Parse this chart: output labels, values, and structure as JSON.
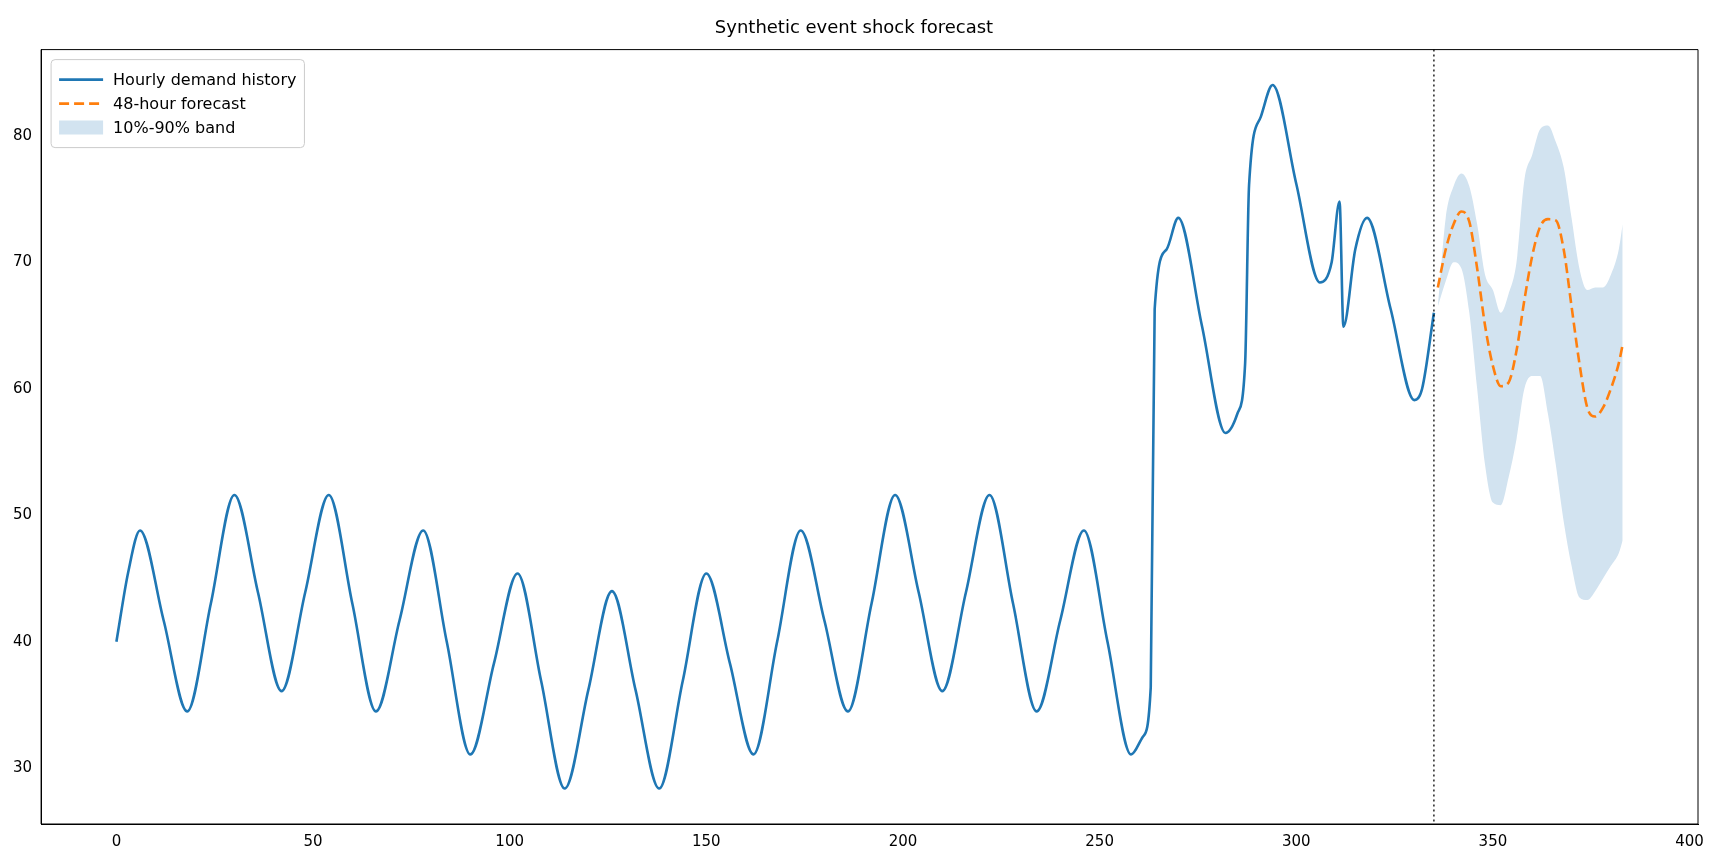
{
  "chart_data": {
    "type": "line",
    "title": "Synthetic event shock forecast",
    "xlim": [
      -19.15,
      402.15
    ],
    "ylim": [
      25.6,
      86.8
    ],
    "xticks": [
      0,
      50,
      100,
      150,
      200,
      250,
      300,
      350,
      400
    ],
    "yticks": [
      30,
      40,
      50,
      60,
      70,
      80
    ],
    "grid": false,
    "legend": "top left",
    "marker": "none",
    "series": [
      {
        "name": "Hourly demand history",
        "color": "#1f77b4",
        "line_style": "solid",
        "x": [
          0,
          3,
          6,
          12,
          18,
          24,
          30,
          36,
          42,
          48,
          54,
          60,
          66,
          72,
          78,
          84,
          90,
          96,
          102,
          108,
          114,
          120,
          126,
          132,
          138,
          144,
          150,
          156,
          162,
          168,
          174,
          180,
          186,
          192,
          198,
          204,
          210,
          216,
          222,
          228,
          234,
          240,
          246,
          252,
          258,
          261,
          263,
          264,
          267,
          270,
          276,
          282,
          285,
          287,
          288,
          291,
          294,
          300,
          306,
          309,
          311,
          312,
          315,
          318,
          324,
          330,
          332,
          335
        ],
        "values": [
          40,
          45.5,
          48.8,
          41.7,
          34.5,
          43,
          51.6,
          43.9,
          36.1,
          43.9,
          51.6,
          43,
          34.5,
          41.7,
          48.8,
          40,
          31.1,
          38.3,
          45.4,
          36.9,
          28.4,
          36.2,
          44,
          36.2,
          28.4,
          36.9,
          45.4,
          38.3,
          31.1,
          40,
          48.8,
          41.7,
          34.5,
          43,
          51.6,
          43.9,
          36.1,
          43.9,
          51.6,
          43,
          34.5,
          41.7,
          48.8,
          40,
          31.1,
          32.5,
          36.4,
          66.3,
          71,
          73.5,
          65,
          56.5,
          58,
          62,
          76.1,
          81.5,
          84,
          76.2,
          68.4,
          70,
          74.8,
          64.9,
          71,
          73.5,
          66.3,
          59.1,
          60,
          66
        ]
      },
      {
        "name": "48-hour forecast",
        "color": "#ff7f0e",
        "line_style": "dashed",
        "x": [
          336,
          338,
          340,
          342,
          344,
          346,
          348,
          350,
          352,
          354,
          356,
          358,
          360,
          362,
          364,
          366,
          368,
          370,
          372,
          374,
          376,
          378,
          380,
          382,
          383
        ],
        "values": [
          68,
          71,
          73,
          74,
          73.2,
          69.5,
          65,
          61.8,
          60.2,
          60.5,
          63,
          67,
          70.5,
          72.8,
          73.4,
          73.3,
          71,
          66.5,
          62,
          58.5,
          57.8,
          58.5,
          60,
          62,
          63.5
        ]
      },
      {
        "name": "10%-90% band",
        "type": "area",
        "color": "#d2e3f0",
        "x": [
          336,
          338,
          340,
          342,
          344,
          346,
          348,
          350,
          352,
          354,
          356,
          358,
          360,
          362,
          364,
          366,
          368,
          370,
          372,
          374,
          376,
          378,
          380,
          382,
          383
        ],
        "values": [
          null,
          null,
          null,
          null,
          null,
          null,
          null,
          null,
          null,
          null,
          null,
          null,
          null,
          null,
          null,
          null,
          null,
          null,
          null,
          null,
          null,
          null,
          null,
          null,
          null
        ],
        "lower": [
          66.5,
          68.5,
          70,
          69.5,
          66,
          60,
          54,
          51,
          50.8,
          53,
          56,
          60,
          61,
          61,
          58,
          54,
          49.5,
          46,
          43.5,
          43.3,
          44,
          45,
          46,
          47,
          48
        ],
        "upper": [
          66.5,
          73.5,
          76,
          77,
          76,
          73,
          69,
          67.8,
          66,
          67.5,
          70,
          76.5,
          78.5,
          80.5,
          80.8,
          79.5,
          77.5,
          73.5,
          69.5,
          67.8,
          68,
          68,
          69,
          71,
          73
        ]
      }
    ],
    "ref_lines": [
      {
        "axis": "x",
        "value": 335,
        "color": "#000000",
        "line_style": "dotted"
      }
    ]
  }
}
